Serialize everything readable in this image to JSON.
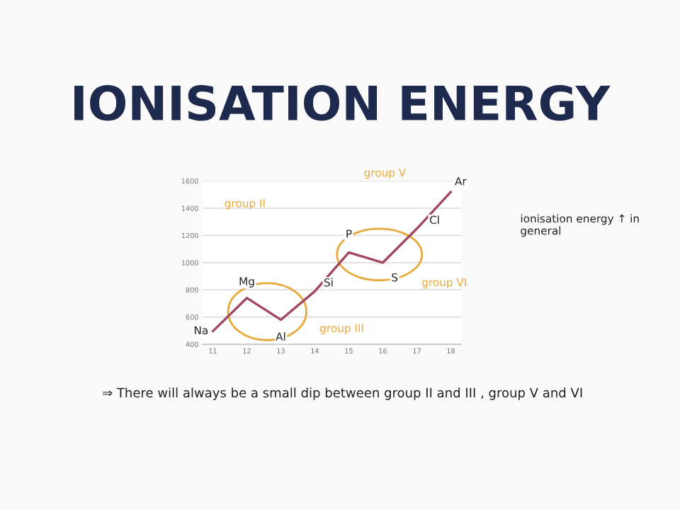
{
  "chart_data": {
    "type": "line",
    "title": "IONISATION ENERGY",
    "x": [
      11,
      12,
      13,
      14,
      15,
      16,
      17,
      18
    ],
    "series": [
      {
        "color": "#a3465f",
        "values": [
          496,
          740,
          580,
          790,
          1075,
          1000,
          1250,
          1520
        ]
      }
    ],
    "xlim": [
      10.7,
      18.3
    ],
    "xticks": [
      11,
      12,
      13,
      14,
      15,
      16,
      17,
      18
    ],
    "ylim": [
      400,
      1600
    ],
    "yticks": [
      400,
      600,
      800,
      1000,
      1200,
      1400,
      1600
    ],
    "grid": "y",
    "marker": "none",
    "line_style": "solid",
    "annotations": [
      {
        "text": "Na",
        "x": 11,
        "y": 496
      },
      {
        "text": "Mg",
        "x": 12,
        "y": 740
      },
      {
        "text": "Al",
        "x": 13,
        "y": 580
      },
      {
        "text": "Si",
        "x": 14,
        "y": 790
      },
      {
        "text": "P",
        "x": 15,
        "y": 1075
      },
      {
        "text": "S",
        "x": 16,
        "y": 1000
      },
      {
        "text": "Cl",
        "x": 17,
        "y": 1250
      },
      {
        "text": "Ar",
        "x": 18,
        "y": 1520
      },
      "group II",
      "group III",
      "group V",
      "group VI",
      "ionisation energy ↑ in general",
      "⇒ There will always be a small dip between group II and III , group V and VI"
    ]
  }
}
